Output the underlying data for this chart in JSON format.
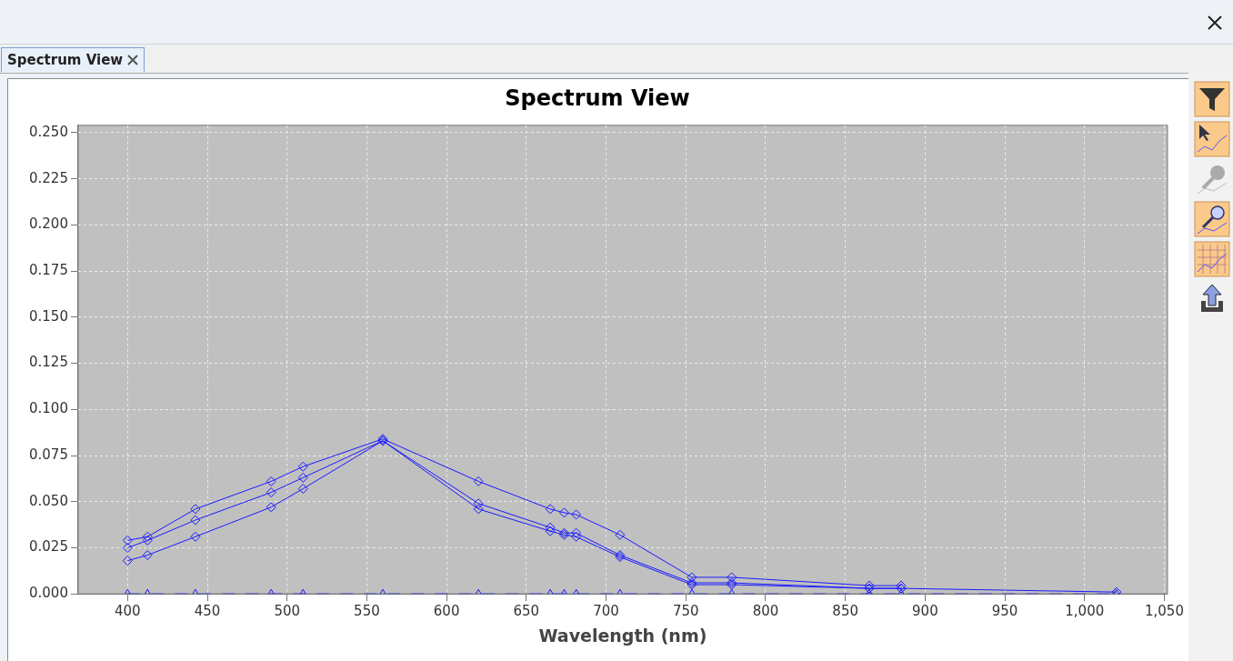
{
  "chart_data": {
    "type": "line",
    "title": "Spectrum View",
    "xlabel": "Wavelength (nm)",
    "x": [
      400,
      412.5,
      442.5,
      490,
      510,
      560,
      620,
      665,
      673.75,
      681.25,
      708.75,
      753.75,
      778.75,
      865,
      885,
      1020
    ],
    "series": [
      {
        "color": "#1a1aff",
        "marker": "diamond",
        "line_style": "solid",
        "values": [
          0.029,
          0.031,
          0.046,
          0.061,
          0.069,
          0.084,
          0.061,
          0.046,
          0.044,
          0.043,
          0.032,
          0.009,
          0.009,
          0.0045,
          0.0045,
          null
        ]
      },
      {
        "color": "#1a1aff",
        "marker": "diamond",
        "line_style": "solid",
        "values": [
          0.025,
          0.029,
          0.04,
          0.055,
          0.063,
          0.083,
          0.049,
          0.036,
          0.033,
          0.033,
          0.021,
          0.006,
          0.006,
          0.003,
          0.003,
          null
        ]
      },
      {
        "color": "#1a1aff",
        "marker": "diamond",
        "line_style": "solid",
        "values": [
          0.018,
          0.021,
          0.031,
          0.047,
          0.057,
          0.083,
          0.046,
          0.034,
          0.032,
          0.031,
          0.02,
          0.005,
          0.005,
          0.003,
          0.003,
          0.001
        ]
      },
      {
        "color": "#1a1aff",
        "marker": "triangle",
        "line_style": "dashed",
        "values": [
          0,
          0,
          0,
          0,
          0,
          0,
          0,
          0,
          0,
          0,
          0,
          0,
          0,
          0,
          0,
          0
        ]
      }
    ],
    "xlim": [
      369,
      1052
    ],
    "ylim": [
      0,
      0.254
    ],
    "xticks": [
      400,
      450,
      500,
      550,
      600,
      650,
      700,
      750,
      800,
      850,
      900,
      950,
      {
        "value": 1000,
        "label": "1,000"
      },
      {
        "value": 1050,
        "label": "1,050"
      }
    ],
    "yticks": [
      {
        "value": 0,
        "label": "0.000"
      },
      0.025,
      {
        "value": 0.05,
        "label": "0.050"
      },
      0.075,
      {
        "value": 0.1,
        "label": "0.100"
      },
      0.125,
      {
        "value": 0.15,
        "label": "0.150"
      },
      0.175,
      {
        "value": 0.2,
        "label": "0.200"
      },
      0.225,
      {
        "value": 0.25,
        "label": "0.250"
      }
    ],
    "grid": true,
    "legend": false
  }
}
